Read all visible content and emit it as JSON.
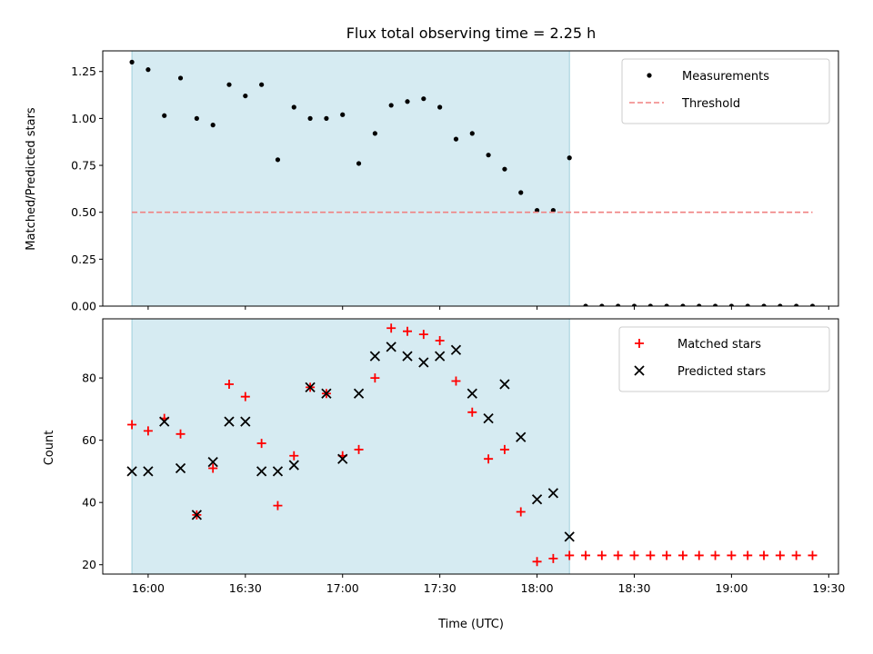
{
  "chart_data": [
    {
      "type": "scatter",
      "title": "Flux total observing time = 2.25 h",
      "xlabel": "",
      "ylabel": "Matched/Predicted stars",
      "x_unit": "Time (UTC)",
      "xlim": [
        "15:46",
        "19:33"
      ],
      "ylim": [
        0,
        1.36
      ],
      "yticks": [
        "0.00",
        "0.25",
        "0.50",
        "0.75",
        "1.00",
        "1.25"
      ],
      "shaded_interval": [
        "15:55",
        "18:10"
      ],
      "legend_position": "top-right",
      "series": [
        {
          "name": "Measurements",
          "marker": "dot",
          "color": "#000000",
          "points": [
            [
              "15:55",
              1.3
            ],
            [
              "16:00",
              1.26
            ],
            [
              "16:05",
              1.015
            ],
            [
              "16:10",
              1.215
            ],
            [
              "16:15",
              1.0
            ],
            [
              "16:20",
              0.965
            ],
            [
              "16:25",
              1.18
            ],
            [
              "16:30",
              1.12
            ],
            [
              "16:35",
              1.18
            ],
            [
              "16:40",
              0.78
            ],
            [
              "16:45",
              1.06
            ],
            [
              "16:50",
              1.0
            ],
            [
              "16:55",
              1.0
            ],
            [
              "17:00",
              1.02
            ],
            [
              "17:05",
              0.76
            ],
            [
              "17:10",
              0.92
            ],
            [
              "17:15",
              1.07
            ],
            [
              "17:20",
              1.09
            ],
            [
              "17:25",
              1.105
            ],
            [
              "17:30",
              1.06
            ],
            [
              "17:35",
              0.89
            ],
            [
              "17:40",
              0.92
            ],
            [
              "17:45",
              0.805
            ],
            [
              "17:50",
              0.73
            ],
            [
              "17:55",
              0.605
            ],
            [
              "18:00",
              0.51
            ],
            [
              "18:05",
              0.51
            ],
            [
              "18:10",
              0.79
            ],
            [
              "18:15",
              0
            ],
            [
              "18:20",
              0
            ],
            [
              "18:25",
              0
            ],
            [
              "18:30",
              0
            ],
            [
              "18:35",
              0
            ],
            [
              "18:40",
              0
            ],
            [
              "18:45",
              0
            ],
            [
              "18:50",
              0
            ],
            [
              "18:55",
              0
            ],
            [
              "19:00",
              0
            ],
            [
              "19:05",
              0
            ],
            [
              "19:10",
              0
            ],
            [
              "19:15",
              0
            ],
            [
              "19:20",
              0
            ],
            [
              "19:25",
              0
            ]
          ]
        },
        {
          "name": "Threshold",
          "marker": "dashed-line",
          "color": "#f08080",
          "points": [
            [
              "15:55",
              0.5
            ],
            [
              "19:25",
              0.5
            ]
          ]
        }
      ]
    },
    {
      "type": "scatter",
      "title": "",
      "xlabel": "Time (UTC)",
      "ylabel": "Count",
      "xlim": [
        "15:46",
        "19:33"
      ],
      "ylim": [
        17,
        99
      ],
      "yticks": [
        "20",
        "40",
        "60",
        "80"
      ],
      "xticks": [
        "16:00",
        "16:30",
        "17:00",
        "17:30",
        "18:00",
        "18:30",
        "19:00",
        "19:30"
      ],
      "shaded_interval": [
        "15:55",
        "18:10"
      ],
      "legend_position": "top-right",
      "series": [
        {
          "name": "Matched stars",
          "marker": "plus",
          "color": "#ff0000",
          "points": [
            [
              "15:55",
              65
            ],
            [
              "16:00",
              63
            ],
            [
              "16:05",
              67
            ],
            [
              "16:10",
              62
            ],
            [
              "16:15",
              36
            ],
            [
              "16:20",
              51
            ],
            [
              "16:25",
              78
            ],
            [
              "16:30",
              74
            ],
            [
              "16:35",
              59
            ],
            [
              "16:40",
              39
            ],
            [
              "16:45",
              55
            ],
            [
              "16:50",
              77
            ],
            [
              "16:55",
              75
            ],
            [
              "17:00",
              55
            ],
            [
              "17:05",
              57
            ],
            [
              "17:10",
              80
            ],
            [
              "17:15",
              96
            ],
            [
              "17:20",
              95
            ],
            [
              "17:25",
              94
            ],
            [
              "17:30",
              92
            ],
            [
              "17:35",
              79
            ],
            [
              "17:40",
              69
            ],
            [
              "17:45",
              54
            ],
            [
              "17:50",
              57
            ],
            [
              "17:55",
              37
            ],
            [
              "18:00",
              21
            ],
            [
              "18:05",
              22
            ],
            [
              "18:10",
              23
            ],
            [
              "18:15",
              23
            ],
            [
              "18:20",
              23
            ],
            [
              "18:25",
              23
            ],
            [
              "18:30",
              23
            ],
            [
              "18:35",
              23
            ],
            [
              "18:40",
              23
            ],
            [
              "18:45",
              23
            ],
            [
              "18:50",
              23
            ],
            [
              "18:55",
              23
            ],
            [
              "19:00",
              23
            ],
            [
              "19:05",
              23
            ],
            [
              "19:10",
              23
            ],
            [
              "19:15",
              23
            ],
            [
              "19:20",
              23
            ],
            [
              "19:25",
              23
            ]
          ]
        },
        {
          "name": "Predicted stars",
          "marker": "x",
          "color": "#000000",
          "points": [
            [
              "15:55",
              50
            ],
            [
              "16:00",
              50
            ],
            [
              "16:05",
              66
            ],
            [
              "16:10",
              51
            ],
            [
              "16:15",
              36
            ],
            [
              "16:20",
              53
            ],
            [
              "16:25",
              66
            ],
            [
              "16:30",
              66
            ],
            [
              "16:35",
              50
            ],
            [
              "16:40",
              50
            ],
            [
              "16:45",
              52
            ],
            [
              "16:50",
              77
            ],
            [
              "16:55",
              75
            ],
            [
              "17:00",
              54
            ],
            [
              "17:05",
              75
            ],
            [
              "17:10",
              87
            ],
            [
              "17:15",
              90
            ],
            [
              "17:20",
              87
            ],
            [
              "17:25",
              85
            ],
            [
              "17:30",
              87
            ],
            [
              "17:35",
              89
            ],
            [
              "17:40",
              75
            ],
            [
              "17:45",
              67
            ],
            [
              "17:50",
              78
            ],
            [
              "17:55",
              61
            ],
            [
              "18:00",
              41
            ],
            [
              "18:05",
              43
            ],
            [
              "18:10",
              29
            ]
          ]
        }
      ]
    }
  ]
}
